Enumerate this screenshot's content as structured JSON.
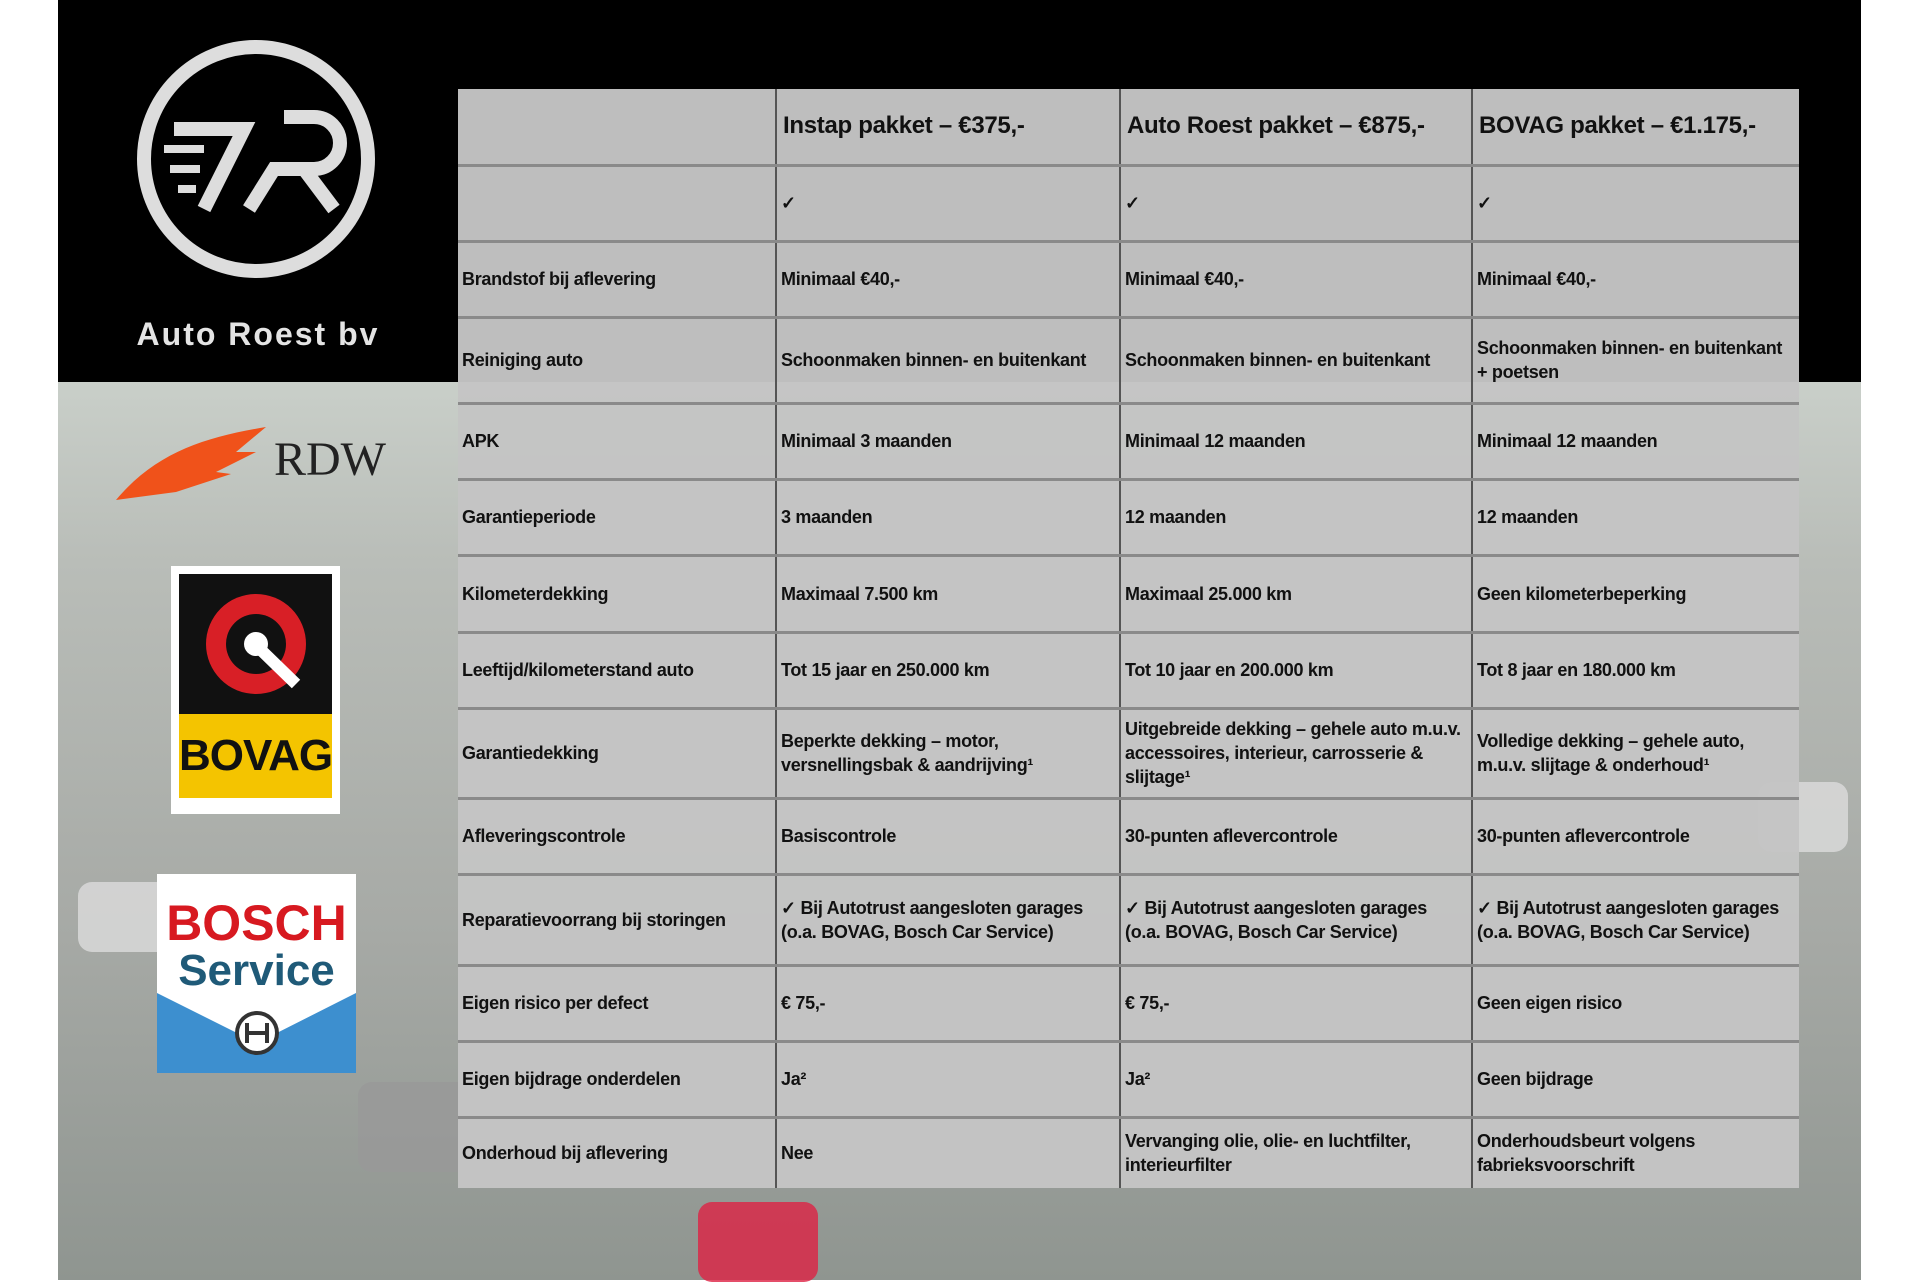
{
  "brand": {
    "name": "Auto Roest bv",
    "logo_text": "R"
  },
  "logos": [
    {
      "name": "RDW"
    },
    {
      "name": "BOVAG"
    },
    {
      "name": "BOSCH",
      "sub": "Service"
    }
  ],
  "table": {
    "headers": [
      "",
      "Instap pakket – €375,-",
      "Auto Roest pakket – €875,-",
      "BOVAG pakket – €1.175,-"
    ],
    "rows": [
      [
        "",
        "✓",
        "✓",
        "✓"
      ],
      [
        "Brandstof bij aflevering",
        "Minimaal €40,-",
        "Minimaal €40,-",
        "Minimaal €40,-"
      ],
      [
        "Reiniging auto",
        "Schoonmaken binnen- en buitenkant",
        "Schoonmaken binnen- en buitenkant",
        "Schoonmaken binnen- en buitenkant + poetsen"
      ],
      [
        "APK",
        "Minimaal 3 maanden",
        "Minimaal 12 maanden",
        "Minimaal 12 maanden"
      ],
      [
        "Garantieperiode",
        "3 maanden",
        "12 maanden",
        "12 maanden"
      ],
      [
        "Kilometerdekking",
        "Maximaal 7.500 km",
        "Maximaal 25.000 km",
        "Geen kilometerbeperking"
      ],
      [
        "Leeftijd/kilometerstand auto",
        "Tot 15 jaar en 250.000 km",
        "Tot 10 jaar en 200.000 km",
        "Tot 8 jaar en 180.000 km"
      ],
      [
        "Garantiedekking",
        "Beperkte dekking – motor, versnellingsbak & aandrijving¹",
        "Uitgebreide dekking – gehele auto m.u.v. accessoires, interieur, carrosserie & slijtage¹",
        "Volledige dekking – gehele auto, m.u.v. slijtage & onderhoud¹"
      ],
      [
        "Afleveringscontrole",
        "Basiscontrole",
        "30-punten aflevercontrole",
        "30-punten aflevercontrole"
      ],
      [
        "Reparatievoorrang bij storingen",
        "✓ Bij Autotrust aangesloten garages (o.a. BOVAG, Bosch Car Service)",
        "✓ Bij Autotrust aangesloten garages (o.a. BOVAG, Bosch Car Service)",
        "✓ Bij Autotrust aangesloten garages (o.a. BOVAG, Bosch Car Service)"
      ],
      [
        "Eigen risico per defect",
        "€ 75,-",
        "€ 75,-",
        "Geen eigen risico"
      ],
      [
        "Eigen bijdrage onderdelen",
        "Ja²",
        "Ja²",
        "Geen bijdrage"
      ],
      [
        "Onderhoud bij aflevering",
        "Nee",
        "Vervanging olie, olie- en luchtfilter, interieurfilter",
        "Onderhoudsbeurt volgens fabrieksvoorschrift"
      ]
    ]
  }
}
